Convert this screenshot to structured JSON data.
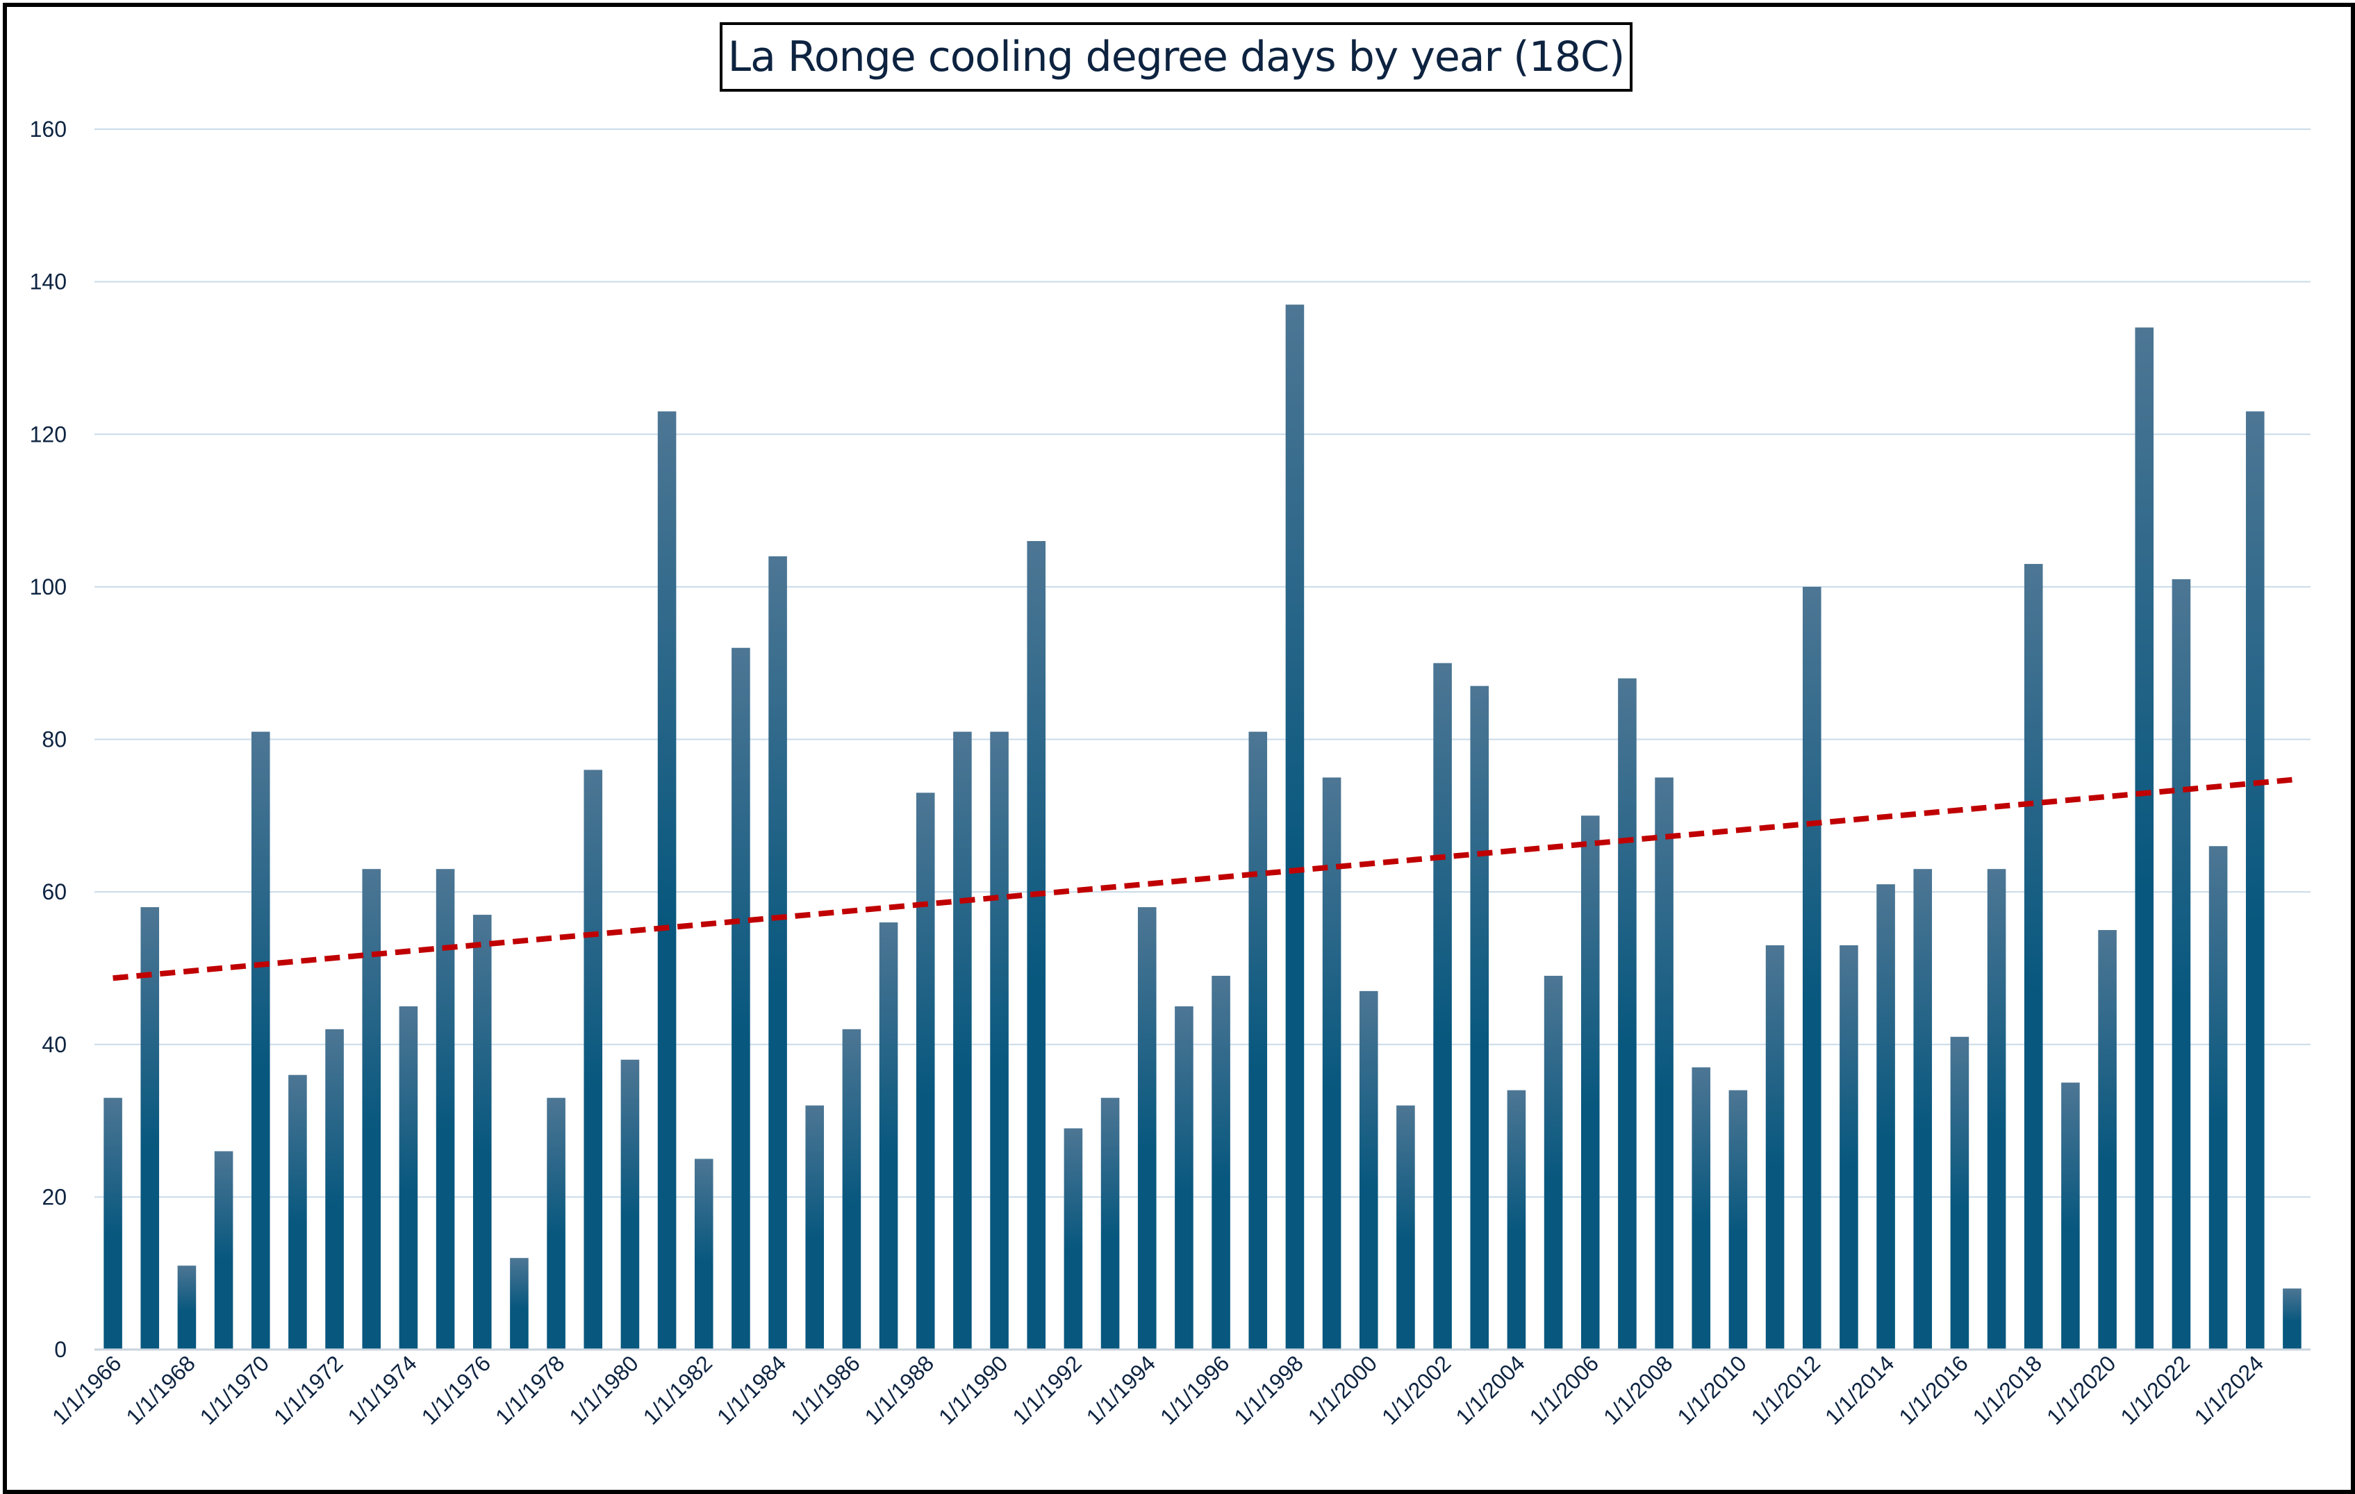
{
  "chart_data": {
    "type": "bar",
    "title": "La Ronge cooling degree days by year (18C)",
    "xlabel": "",
    "ylabel": "",
    "ylim": [
      0,
      160
    ],
    "yticks": [
      0,
      20,
      40,
      60,
      80,
      100,
      120,
      140,
      160
    ],
    "grid": true,
    "legend": "none",
    "categories": [
      "1/1/1966",
      "1/1/1967",
      "1/1/1968",
      "1/1/1969",
      "1/1/1970",
      "1/1/1971",
      "1/1/1972",
      "1/1/1973",
      "1/1/1974",
      "1/1/1975",
      "1/1/1976",
      "1/1/1977",
      "1/1/1978",
      "1/1/1979",
      "1/1/1980",
      "1/1/1981",
      "1/1/1982",
      "1/1/1983",
      "1/1/1984",
      "1/1/1985",
      "1/1/1986",
      "1/1/1987",
      "1/1/1988",
      "1/1/1989",
      "1/1/1990",
      "1/1/1991",
      "1/1/1992",
      "1/1/1993",
      "1/1/1994",
      "1/1/1995",
      "1/1/1996",
      "1/1/1997",
      "1/1/1998",
      "1/1/1999",
      "1/1/2000",
      "1/1/2001",
      "1/1/2002",
      "1/1/2003",
      "1/1/2004",
      "1/1/2005",
      "1/1/2006",
      "1/1/2007",
      "1/1/2008",
      "1/1/2009",
      "1/1/2010",
      "1/1/2011",
      "1/1/2012",
      "1/1/2013",
      "1/1/2014",
      "1/1/2015",
      "1/1/2016",
      "1/1/2017",
      "1/1/2018",
      "1/1/2019",
      "1/1/2020",
      "1/1/2021",
      "1/1/2022",
      "1/1/2023",
      "1/1/2024",
      "1/1/2025"
    ],
    "visible_tick_labels": [
      "1/1/1966",
      "1/1/1968",
      "1/1/1970",
      "1/1/1972",
      "1/1/1974",
      "1/1/1976",
      "1/1/1978",
      "1/1/1980",
      "1/1/1982",
      "1/1/1984",
      "1/1/1986",
      "1/1/1988",
      "1/1/1990",
      "1/1/1992",
      "1/1/1994",
      "1/1/1996",
      "1/1/1998",
      "1/1/2000",
      "1/1/2002",
      "1/1/2004",
      "1/1/2006",
      "1/1/2008",
      "1/1/2010",
      "1/1/2012",
      "1/1/2014",
      "1/1/2016",
      "1/1/2018",
      "1/1/2020",
      "1/1/2022",
      "1/1/2024"
    ],
    "values": [
      33,
      58,
      11,
      26,
      81,
      36,
      42,
      63,
      45,
      63,
      57,
      12,
      33,
      76,
      38,
      123,
      25,
      92,
      104,
      32,
      42,
      56,
      73,
      81,
      81,
      106,
      29,
      33,
      58,
      45,
      49,
      81,
      137,
      75,
      47,
      32,
      90,
      87,
      34,
      49,
      70,
      88,
      75,
      37,
      34,
      53,
      100,
      53,
      61,
      63,
      41,
      63,
      103,
      35,
      55,
      134,
      101,
      66,
      123,
      8
    ],
    "trendline": {
      "type": "linear",
      "start": 48.7,
      "end": 74.7,
      "style": "dashed"
    },
    "colors": {
      "bar_top": "#4d7694",
      "bar_bottom": "#07577e",
      "trend": "#c00000",
      "grid": "#c9dbe8",
      "text": "#0d2340"
    }
  }
}
